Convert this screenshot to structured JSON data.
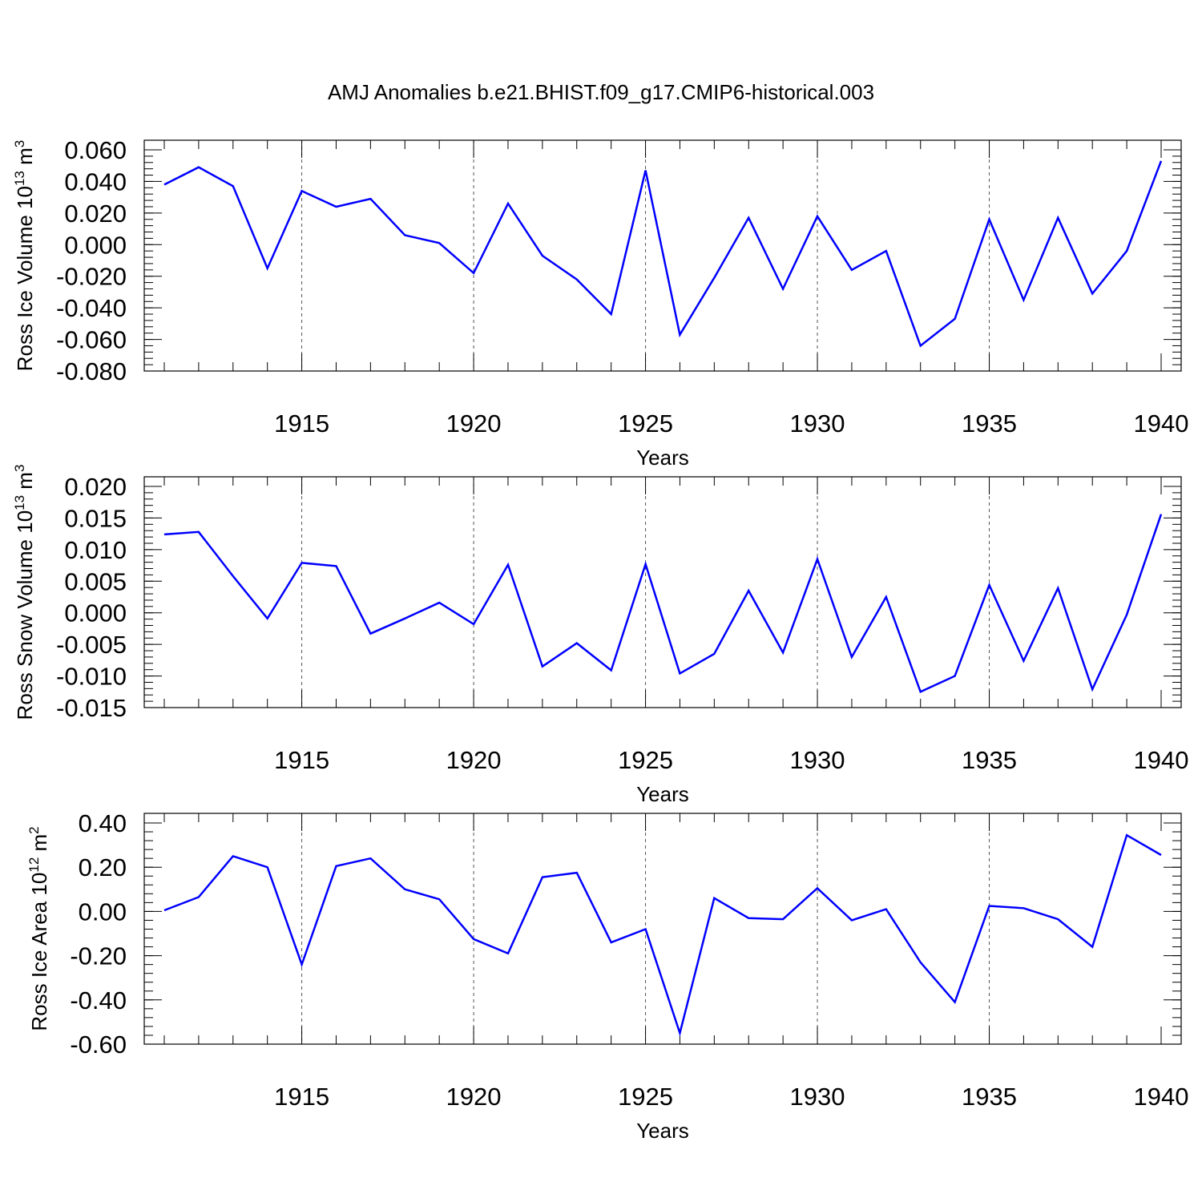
{
  "title": "AMJ Anomalies b.e21.BHIST.f09_g17.CMIP6-historical.003",
  "colors": {
    "line": "#0000ff",
    "axis": "#000000",
    "grid": "#555555"
  },
  "chart_data": [
    {
      "type": "line",
      "ylabel": "Ross Ice Volume 10",
      "ylabel_exp": "13",
      "ylabel_unit": "m",
      "ylabel_unit_exp": "3",
      "xlabel": "Years",
      "xlim": [
        1911,
        1940
      ],
      "ylim": [
        -0.08,
        0.06
      ],
      "xtick_values": [
        1915,
        1920,
        1925,
        1930,
        1935,
        1940
      ],
      "xticks": [
        "1915",
        "1920",
        "1925",
        "1930",
        "1935",
        "1940"
      ],
      "ytick_values": [
        -0.08,
        -0.06,
        -0.04,
        -0.02,
        0.0,
        0.02,
        0.04,
        0.06
      ],
      "yticks": [
        "-0.080",
        "-0.060",
        "-0.040",
        "-0.020",
        "0.000",
        "0.020",
        "0.040",
        "0.060"
      ],
      "grid": "dashed vertical lines at labelled years",
      "x": [
        1911,
        1912,
        1913,
        1914,
        1915,
        1916,
        1917,
        1918,
        1919,
        1920,
        1921,
        1922,
        1923,
        1924,
        1925,
        1926,
        1927,
        1928,
        1929,
        1930,
        1931,
        1932,
        1933,
        1934,
        1935,
        1936,
        1937,
        1938,
        1939,
        1940
      ],
      "values": [
        0.038,
        0.049,
        0.037,
        -0.015,
        0.034,
        0.024,
        0.029,
        0.006,
        0.001,
        -0.018,
        0.026,
        -0.007,
        -0.022,
        -0.044,
        0.047,
        -0.057,
        -0.021,
        0.017,
        -0.028,
        0.018,
        -0.016,
        -0.004,
        -0.064,
        -0.047,
        0.016,
        -0.035,
        0.017,
        -0.031,
        -0.004,
        0.053
      ]
    },
    {
      "type": "line",
      "ylabel": "Ross Snow Volume 10",
      "ylabel_exp": "13",
      "ylabel_unit": "m",
      "ylabel_unit_exp": "3",
      "xlabel": "Years",
      "xlim": [
        1911,
        1940
      ],
      "ylim": [
        -0.015,
        0.02
      ],
      "xtick_values": [
        1915,
        1920,
        1925,
        1930,
        1935,
        1940
      ],
      "xticks": [
        "1915",
        "1920",
        "1925",
        "1930",
        "1935",
        "1940"
      ],
      "ytick_values": [
        -0.015,
        -0.01,
        -0.005,
        0.0,
        0.005,
        0.01,
        0.015,
        0.02
      ],
      "yticks": [
        "-0.015",
        "-0.010",
        "-0.005",
        "0.000",
        "0.005",
        "0.010",
        "0.015",
        "0.020"
      ],
      "grid": "dashed vertical lines at labelled years",
      "x": [
        1911,
        1912,
        1913,
        1914,
        1915,
        1916,
        1917,
        1918,
        1919,
        1920,
        1921,
        1922,
        1923,
        1924,
        1925,
        1926,
        1927,
        1928,
        1929,
        1930,
        1931,
        1932,
        1933,
        1934,
        1935,
        1936,
        1937,
        1938,
        1939,
        1940
      ],
      "values": [
        0.0124,
        0.0128,
        0.0058,
        -0.0009,
        0.0079,
        0.0074,
        -0.0033,
        -0.0009,
        0.0016,
        -0.0018,
        0.0076,
        -0.0085,
        -0.0048,
        -0.0091,
        0.0077,
        -0.0096,
        -0.0065,
        0.0035,
        -0.0063,
        0.0085,
        -0.007,
        0.0025,
        -0.0125,
        -0.01,
        0.0044,
        -0.0076,
        0.0039,
        -0.0121,
        -0.0003,
        0.0156
      ]
    },
    {
      "type": "line",
      "ylabel": "Ross Ice Area 10",
      "ylabel_exp": "12",
      "ylabel_unit": "m",
      "ylabel_unit_exp": "2",
      "xlabel": "Years",
      "xlim": [
        1911,
        1940
      ],
      "ylim": [
        -0.6,
        0.4
      ],
      "xtick_values": [
        1915,
        1920,
        1925,
        1930,
        1935,
        1940
      ],
      "xticks": [
        "1915",
        "1920",
        "1925",
        "1930",
        "1935",
        "1940"
      ],
      "ytick_values": [
        -0.6,
        -0.4,
        -0.2,
        0.0,
        0.2,
        0.4
      ],
      "yticks": [
        "-0.60",
        "-0.40",
        "-0.20",
        "0.00",
        "0.20",
        "0.40"
      ],
      "grid": "dashed vertical lines at labelled years",
      "x": [
        1911,
        1912,
        1913,
        1914,
        1915,
        1916,
        1917,
        1918,
        1919,
        1920,
        1921,
        1922,
        1923,
        1924,
        1925,
        1926,
        1927,
        1928,
        1929,
        1930,
        1931,
        1932,
        1933,
        1934,
        1935,
        1936,
        1937,
        1938,
        1939,
        1940
      ],
      "values": [
        0.005,
        0.065,
        0.25,
        0.2,
        -0.24,
        0.205,
        0.24,
        0.1,
        0.055,
        -0.125,
        -0.19,
        0.155,
        0.175,
        -0.14,
        -0.08,
        -0.55,
        0.06,
        -0.03,
        -0.035,
        0.105,
        -0.04,
        0.01,
        -0.23,
        -0.41,
        0.025,
        0.015,
        -0.035,
        -0.16,
        0.345,
        0.255
      ]
    }
  ]
}
